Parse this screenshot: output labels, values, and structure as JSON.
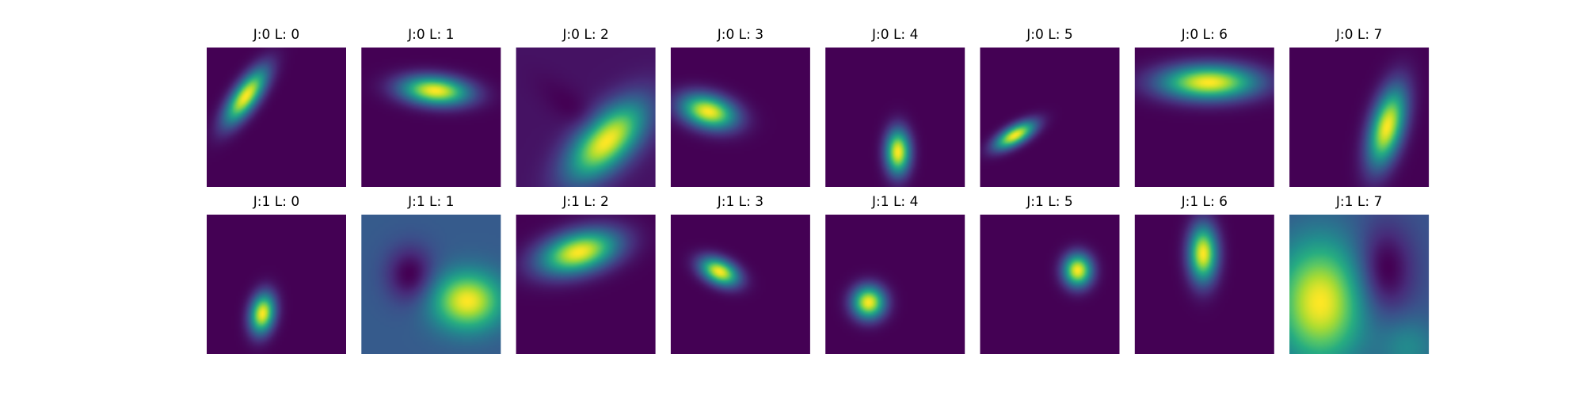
{
  "chart_data": {
    "type": "heatmap",
    "colormap": "viridis",
    "rows": 2,
    "cols": 8,
    "axes_visible": false,
    "panels": [
      {
        "title": "J:0 L: 0",
        "background": 0.0,
        "blobs": [
          {
            "cx": 0.28,
            "cy": 0.35,
            "sx": 0.06,
            "sy": 0.16,
            "angle": 35,
            "amp": 1.0
          }
        ]
      },
      {
        "title": "J:0 L: 1",
        "background": 0.0,
        "blobs": [
          {
            "cx": 0.53,
            "cy": 0.31,
            "sx": 0.17,
            "sy": 0.07,
            "angle": 5,
            "amp": 1.0
          }
        ]
      },
      {
        "title": "J:0 L: 2",
        "background": 0.1,
        "blobs": [
          {
            "cx": 0.65,
            "cy": 0.67,
            "sx": 0.12,
            "sy": 0.24,
            "angle": 45,
            "amp": 1.0
          },
          {
            "cx": 0.42,
            "cy": 0.45,
            "sx": 0.22,
            "sy": 0.08,
            "angle": 40,
            "amp": -0.06
          }
        ]
      },
      {
        "title": "J:0 L: 3",
        "background": 0.0,
        "blobs": [
          {
            "cx": 0.27,
            "cy": 0.46,
            "sx": 0.14,
            "sy": 0.08,
            "angle": 15,
            "amp": 1.0
          }
        ]
      },
      {
        "title": "J:0 L: 4",
        "background": 0.0,
        "blobs": [
          {
            "cx": 0.52,
            "cy": 0.75,
            "sx": 0.06,
            "sy": 0.11,
            "angle": 0,
            "amp": 1.0
          }
        ]
      },
      {
        "title": "J:0 L: 5",
        "background": 0.0,
        "blobs": [
          {
            "cx": 0.25,
            "cy": 0.63,
            "sx": 0.11,
            "sy": 0.045,
            "angle": -30,
            "amp": 1.0
          }
        ]
      },
      {
        "title": "J:0 L: 6",
        "background": 0.0,
        "blobs": [
          {
            "cx": 0.53,
            "cy": 0.25,
            "sx": 0.24,
            "sy": 0.085,
            "angle": 0,
            "amp": 1.0
          }
        ]
      },
      {
        "title": "J:0 L: 7",
        "background": 0.0,
        "blobs": [
          {
            "cx": 0.7,
            "cy": 0.57,
            "sx": 0.08,
            "sy": 0.2,
            "angle": 15,
            "amp": 1.0
          }
        ]
      },
      {
        "title": "J:1 L: 0",
        "background": 0.0,
        "blobs": [
          {
            "cx": 0.4,
            "cy": 0.71,
            "sx": 0.06,
            "sy": 0.1,
            "angle": 10,
            "amp": 1.0
          }
        ]
      },
      {
        "title": "J:1 L: 1",
        "background": 0.3,
        "blobs": [
          {
            "cx": 0.76,
            "cy": 0.62,
            "sx": 0.17,
            "sy": 0.14,
            "angle": 0,
            "amp": 0.7
          },
          {
            "cx": 0.35,
            "cy": 0.43,
            "sx": 0.12,
            "sy": 0.14,
            "angle": 0,
            "amp": -0.3
          }
        ]
      },
      {
        "title": "J:1 L: 2",
        "background": 0.0,
        "blobs": [
          {
            "cx": 0.45,
            "cy": 0.27,
            "sx": 0.2,
            "sy": 0.1,
            "angle": -15,
            "amp": 1.0
          }
        ]
      },
      {
        "title": "J:1 L: 3",
        "background": 0.0,
        "blobs": [
          {
            "cx": 0.35,
            "cy": 0.41,
            "sx": 0.1,
            "sy": 0.06,
            "angle": 25,
            "amp": 1.0
          }
        ]
      },
      {
        "title": "J:1 L: 4",
        "background": 0.0,
        "blobs": [
          {
            "cx": 0.31,
            "cy": 0.63,
            "sx": 0.08,
            "sy": 0.08,
            "angle": 0,
            "amp": 1.0
          }
        ]
      },
      {
        "title": "J:1 L: 5",
        "background": 0.0,
        "blobs": [
          {
            "cx": 0.7,
            "cy": 0.4,
            "sx": 0.07,
            "sy": 0.08,
            "angle": 0,
            "amp": 1.0
          }
        ]
      },
      {
        "title": "J:1 L: 6",
        "background": 0.0,
        "blobs": [
          {
            "cx": 0.49,
            "cy": 0.28,
            "sx": 0.07,
            "sy": 0.14,
            "angle": 0,
            "amp": 1.0
          }
        ]
      },
      {
        "title": "J:1 L: 7",
        "background": 0.3,
        "blobs": [
          {
            "cx": 0.22,
            "cy": 0.63,
            "sx": 0.22,
            "sy": 0.3,
            "angle": 0,
            "amp": 0.7
          },
          {
            "cx": 0.68,
            "cy": 0.4,
            "sx": 0.14,
            "sy": 0.22,
            "angle": 0,
            "amp": -0.3
          },
          {
            "cx": 0.85,
            "cy": 0.95,
            "sx": 0.15,
            "sy": 0.15,
            "angle": 0,
            "amp": 0.2
          }
        ]
      }
    ]
  }
}
